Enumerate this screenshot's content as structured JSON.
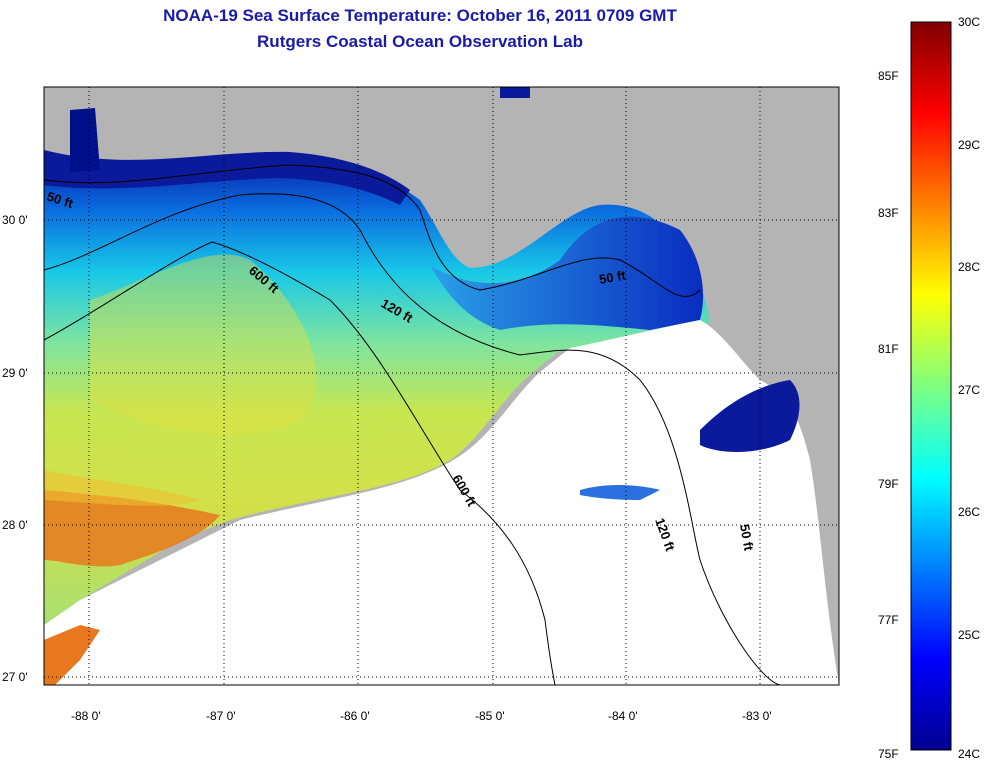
{
  "title": "NOAA-19 Sea Surface Temperature:  October 16, 2011 0709 GMT",
  "subtitle": "Rutgers Coastal Ocean Observation Lab",
  "map": {
    "lat_ticks": [
      "30 0'",
      "29 0'",
      "28 0'",
      "27 0'"
    ],
    "lon_ticks": [
      "-88 0'",
      "-87 0'",
      "-86 0'",
      "-85 0'",
      "-84 0'",
      "-83 0'"
    ],
    "contours": [
      "50 ft",
      "600 ft",
      "120 ft",
      "600 ft",
      "50 ft",
      "120 ft",
      "50 ft"
    ],
    "colors": {
      "land": "#b4b4b4",
      "no_data": "#ffffff",
      "cold": "#00008f",
      "warm": "#800000"
    }
  },
  "colorbar": {
    "celsius": [
      "30C",
      "29C",
      "28C",
      "27C",
      "26C",
      "25C",
      "24C"
    ],
    "fahrenheit": [
      "85F",
      "83F",
      "81F",
      "79F",
      "77F",
      "75F"
    ],
    "range_c": [
      24,
      30
    ]
  }
}
